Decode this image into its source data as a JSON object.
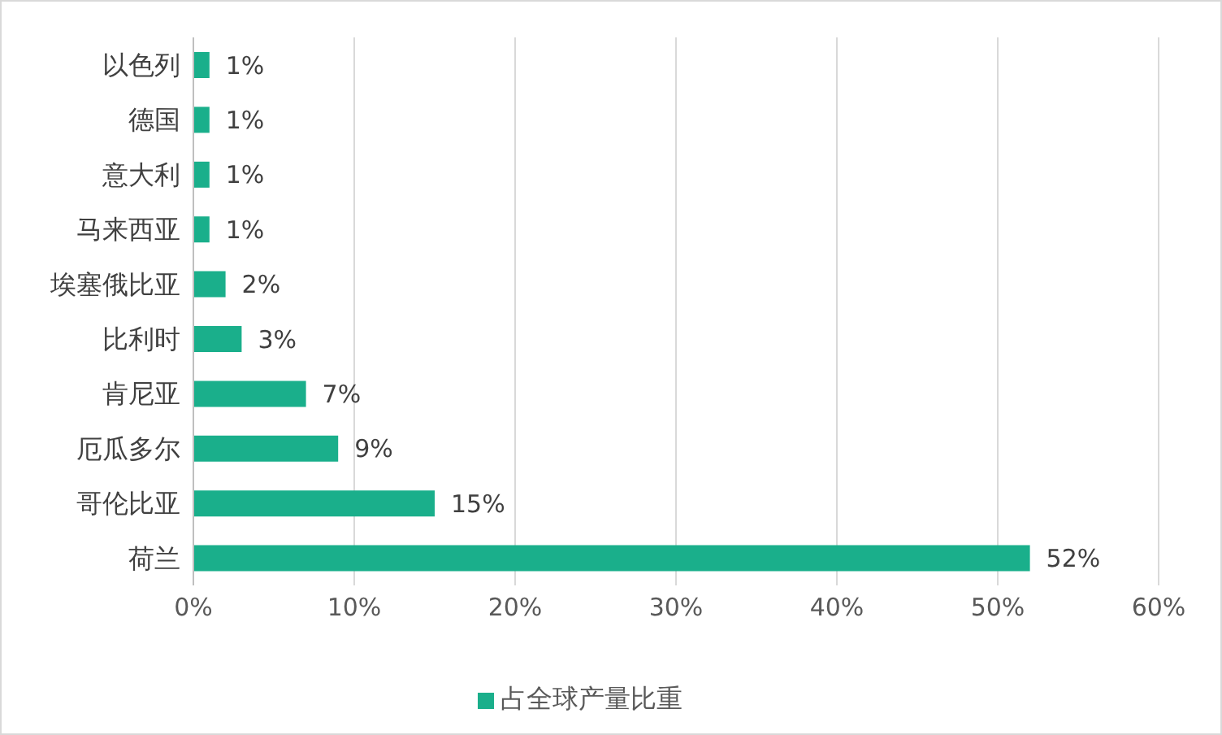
{
  "chart_data": {
    "type": "bar",
    "orientation": "horizontal",
    "categories": [
      "以色列",
      "德国",
      "意大利",
      "马来西亚",
      "埃塞俄比亚",
      "比利时",
      "肯尼亚",
      "厄瓜多尔",
      "哥伦比亚",
      "荷兰"
    ],
    "series": [
      {
        "name": "占全球产量比重",
        "color": "#1aaf8b",
        "values": [
          1,
          1,
          1,
          1,
          2,
          3,
          7,
          9,
          15,
          52
        ],
        "value_labels": [
          "1%",
          "1%",
          "1%",
          "1%",
          "2%",
          "3%",
          "7%",
          "9%",
          "15%",
          "52%"
        ]
      }
    ],
    "xlim": [
      0,
      60
    ],
    "xticks": [
      {
        "value": 0,
        "label": "0%"
      },
      {
        "value": 10,
        "label": "10%"
      },
      {
        "value": 20,
        "label": "20%"
      },
      {
        "value": 30,
        "label": "30%"
      },
      {
        "value": 40,
        "label": "40%"
      },
      {
        "value": 50,
        "label": "50%"
      },
      {
        "value": 60,
        "label": "60%"
      }
    ],
    "grid": "x",
    "legend": "bottom"
  }
}
